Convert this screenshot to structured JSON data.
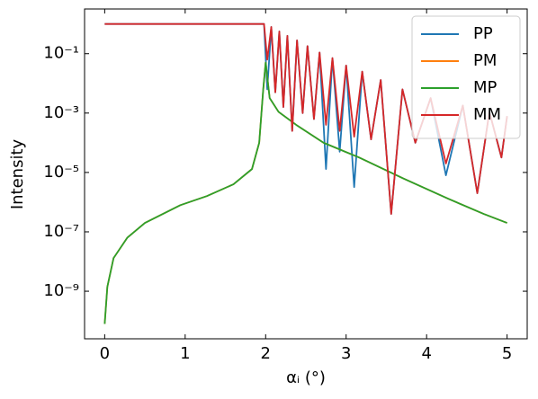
{
  "chart_data": {
    "type": "line",
    "x_label": "αᵢ (°)",
    "y_label": "Intensity",
    "yscale": "log",
    "xlim": [
      -0.25,
      5.25
    ],
    "ylim": [
      2.5e-11,
      3.2
    ],
    "xticks": [
      0,
      1,
      2,
      3,
      4,
      5
    ],
    "yticks": [
      {
        "value": 1e-09,
        "label": "10⁻⁹"
      },
      {
        "value": 1e-07,
        "label": "10⁻⁷"
      },
      {
        "value": 1e-05,
        "label": "10⁻⁵"
      },
      {
        "value": 0.001,
        "label": "10⁻³"
      },
      {
        "value": 0.1,
        "label": "10⁻¹"
      }
    ],
    "legend": "upper right",
    "series": [
      {
        "name": "PP",
        "color": "#1f77b4",
        "x": [
          0,
          1.98,
          2.02,
          2.07,
          2.12,
          2.17,
          2.22,
          2.27,
          2.33,
          2.39,
          2.46,
          2.52,
          2.6,
          2.67,
          2.75,
          2.83,
          2.92,
          3.0,
          3.1,
          3.2,
          3.31,
          3.43,
          3.56,
          3.7,
          3.86,
          4.05,
          4.24,
          4.45,
          4.63,
          4.78,
          4.93,
          5.0
        ],
        "values": [
          1,
          1,
          0.0063,
          0.79,
          0.005,
          0.56,
          0.0016,
          0.4,
          0.00025,
          0.28,
          0.001,
          0.18,
          0.00063,
          0.11,
          1.3e-05,
          0.071,
          5e-05,
          0.04,
          3.2e-06,
          0.025,
          0.00013,
          0.013,
          4e-07,
          0.0063,
          0.0001,
          0.0032,
          8e-06,
          0.0018,
          2e-06,
          0.0011,
          3.2e-05,
          0.00079
        ]
      },
      {
        "name": "PM",
        "color": "#ff7f0e",
        "x": [
          0,
          0.033,
          0.11,
          0.28,
          0.5,
          0.94,
          1.27,
          1.6,
          1.83,
          1.92,
          1.97,
          2.0,
          2.05,
          2.16,
          2.38,
          2.72,
          3.16,
          3.71,
          4.27,
          4.71,
          5.0
        ],
        "values": [
          7.9e-11,
          1.4e-09,
          1.3e-08,
          6.3e-08,
          2e-07,
          7.9e-07,
          1.6e-06,
          4e-06,
          1.3e-05,
          0.0001,
          0.0063,
          0.05,
          0.0032,
          0.0011,
          0.0004,
          0.0001,
          3.2e-05,
          6.3e-06,
          1.3e-06,
          4e-07,
          2e-07
        ]
      },
      {
        "name": "MP",
        "color": "#2ca02c",
        "x": [
          0,
          0.033,
          0.11,
          0.28,
          0.5,
          0.94,
          1.27,
          1.6,
          1.83,
          1.92,
          1.97,
          2.0,
          2.05,
          2.16,
          2.38,
          2.72,
          3.16,
          3.71,
          4.27,
          4.71,
          5.0
        ],
        "values": [
          7.9e-11,
          1.4e-09,
          1.3e-08,
          6.3e-08,
          2e-07,
          7.9e-07,
          1.6e-06,
          4e-06,
          1.3e-05,
          0.0001,
          0.0063,
          0.05,
          0.0032,
          0.0011,
          0.0004,
          0.0001,
          3.2e-05,
          6.3e-06,
          1.3e-06,
          4e-07,
          2e-07
        ]
      },
      {
        "name": "MM",
        "color": "#d62728",
        "x": [
          0,
          1.98,
          2.02,
          2.07,
          2.12,
          2.17,
          2.22,
          2.27,
          2.33,
          2.39,
          2.46,
          2.52,
          2.6,
          2.67,
          2.75,
          2.83,
          2.92,
          3.0,
          3.1,
          3.2,
          3.31,
          3.43,
          3.56,
          3.7,
          3.86,
          4.05,
          4.24,
          4.45,
          4.63,
          4.78,
          4.93,
          5.0
        ],
        "values": [
          1,
          1,
          0.063,
          0.79,
          0.005,
          0.56,
          0.0016,
          0.4,
          0.00025,
          0.28,
          0.001,
          0.18,
          0.00063,
          0.11,
          0.0004,
          0.071,
          0.00025,
          0.04,
          0.00016,
          0.025,
          0.00013,
          0.013,
          4e-07,
          0.0063,
          0.0001,
          0.0032,
          2e-05,
          0.0018,
          2e-06,
          0.0011,
          3.2e-05,
          0.00079
        ]
      }
    ]
  }
}
